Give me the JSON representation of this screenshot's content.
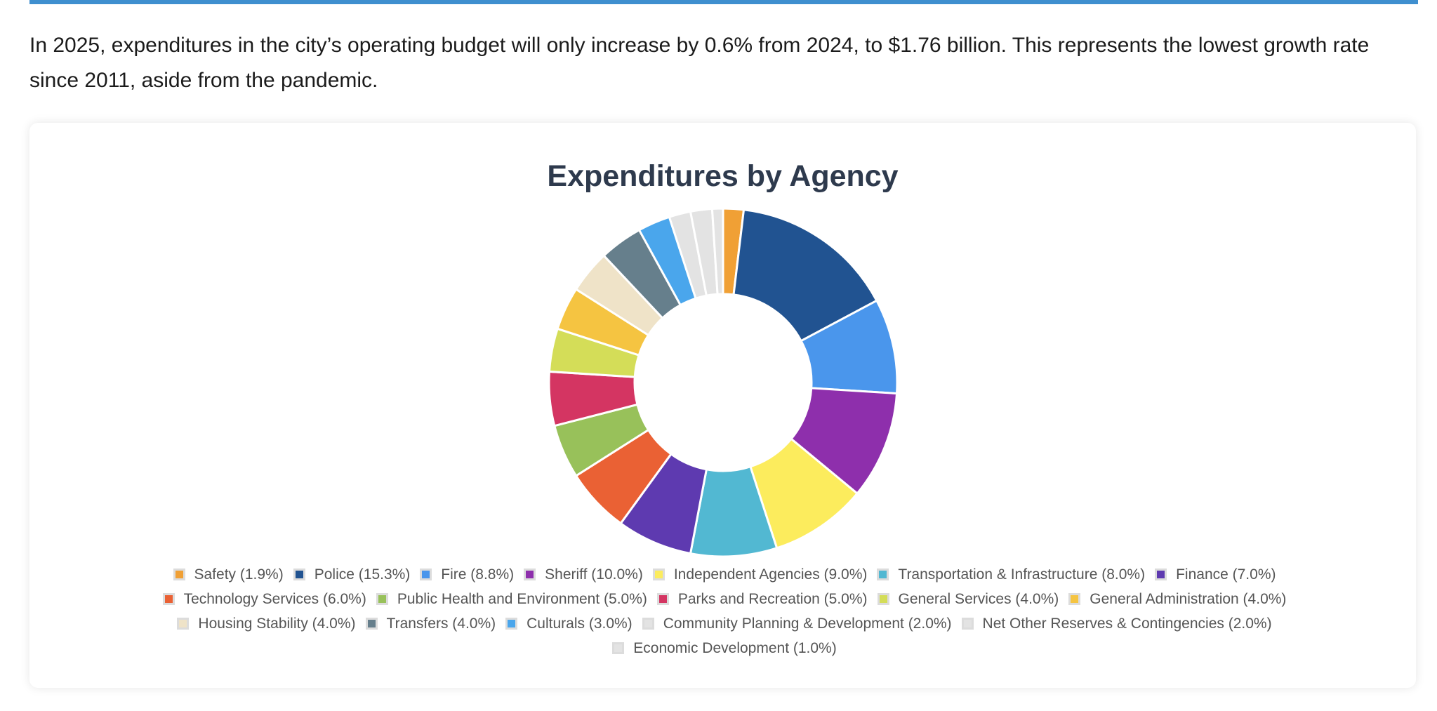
{
  "page": {
    "intro": "In 2025, expenditures in the city’s operating budget will only increase by 0.6% from 2024, to $1.76 billion. This represents the lowest growth rate since 2011, aside from the pandemic."
  },
  "chart_data": {
    "type": "pie",
    "title": "Expenditures by Agency",
    "legend_position": "bottom",
    "categories": [
      "Safety",
      "Police",
      "Fire",
      "Sheriff",
      "Independent Agencies",
      "Transportation & Infrastructure",
      "Finance",
      "Technology Services",
      "Public Health and Environment",
      "Parks and Recreation",
      "General Services",
      "General Administration",
      "Housing Stability",
      "Transfers",
      "Culturals",
      "Community Planning & Development",
      "Net Other Reserves & Contingencies",
      "Economic Development"
    ],
    "values": [
      1.9,
      15.3,
      8.8,
      10.0,
      9.0,
      8.0,
      7.0,
      6.0,
      5.0,
      5.0,
      4.0,
      4.0,
      4.0,
      4.0,
      3.0,
      2.0,
      2.0,
      1.0
    ],
    "legend_labels": [
      "Safety (1.9%)",
      "Police (15.3%)",
      "Fire (8.8%)",
      "Sheriff (10.0%)",
      "Independent Agencies (9.0%)",
      "Transportation & Infrastructure (8.0%)",
      "Finance (7.0%)",
      "Technology Services (6.0%)",
      "Public Health and Environment (5.0%)",
      "Parks and Recreation (5.0%)",
      "General Services (4.0%)",
      "General Administration (4.0%)",
      "Housing Stability (4.0%)",
      "Transfers (4.0%)",
      "Culturals (3.0%)",
      "Community Planning & Development (2.0%)",
      "Net Other Reserves & Contingencies (2.0%)",
      "Economic Development (1.0%)"
    ],
    "colors": [
      "#f0a035",
      "#215391",
      "#4a96ec",
      "#8e2fac",
      "#fcec5d",
      "#52b8d2",
      "#5e3ab0",
      "#ea6134",
      "#98c15a",
      "#d43562",
      "#d4dd58",
      "#f5c441",
      "#efe3c8",
      "#667f8c",
      "#4aa6ec",
      "#e3e3e3",
      "#e3e3e3",
      "#e3e3e3"
    ]
  }
}
